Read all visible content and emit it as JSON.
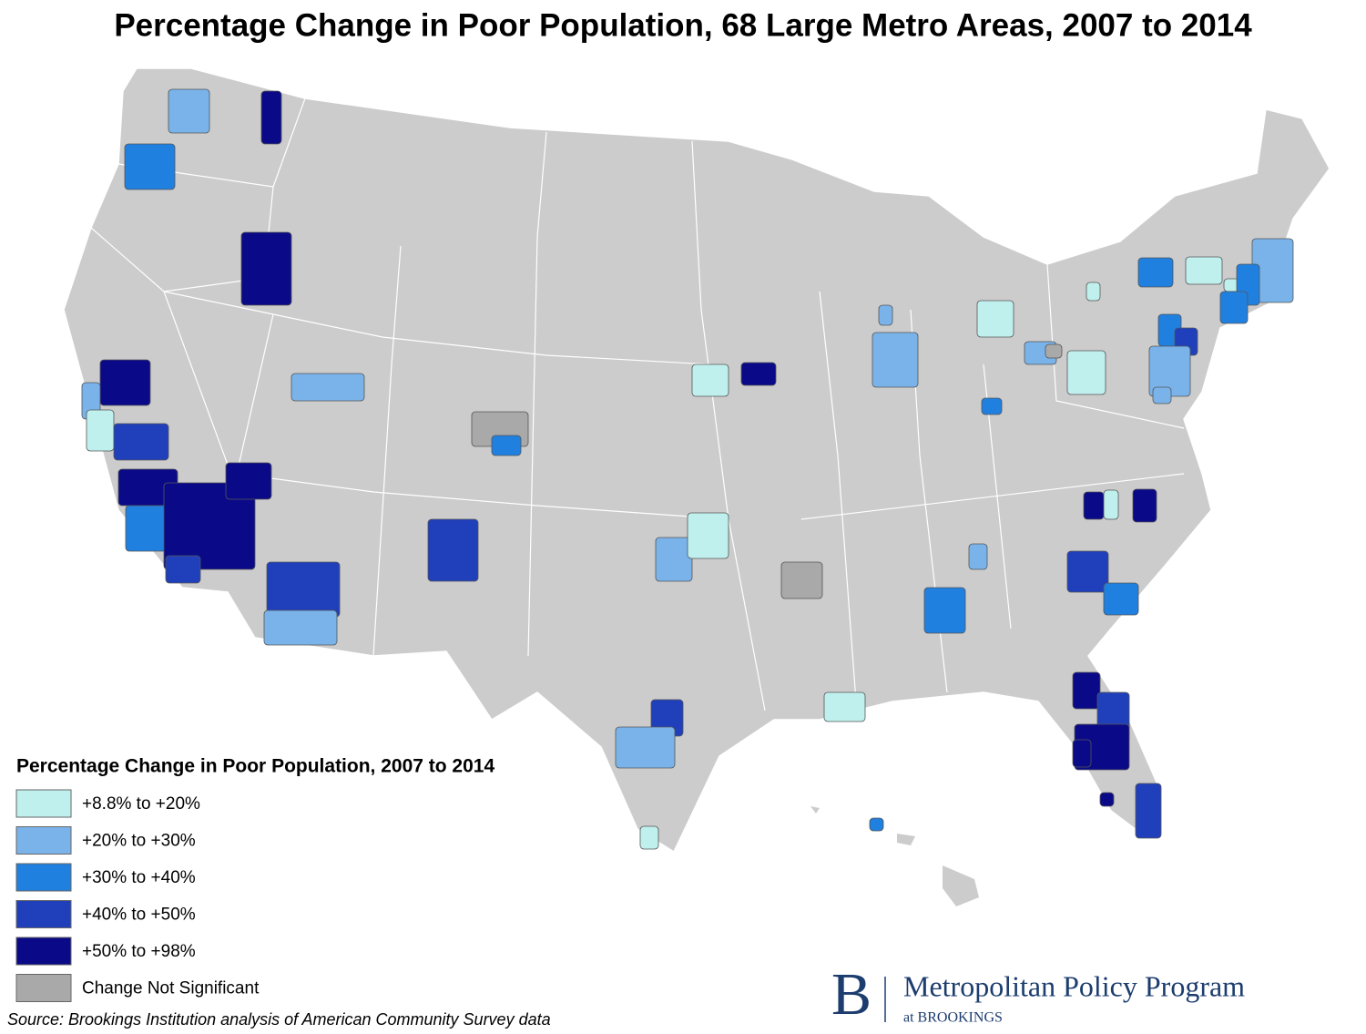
{
  "title": "Percentage Change in Poor Population, 68 Large Metro Areas, 2007 to 2014",
  "legend": {
    "title": "Percentage Change in Poor Population, 2007 to 2014",
    "items": [
      {
        "label": "+8.8% to +20%",
        "color": "#bff0ee"
      },
      {
        "label": "+20% to +30%",
        "color": "#79b3ea"
      },
      {
        "label": "+30% to +40%",
        "color": "#1f80e0"
      },
      {
        "label": "+40% to +50%",
        "color": "#2040bb"
      },
      {
        "label": "+50% to +98%",
        "color": "#0a0a88"
      },
      {
        "label": "Change Not Significant",
        "color": "#a9a9a9"
      }
    ]
  },
  "source": "Source: Brookings Institution analysis of American Community Survey data",
  "logo": {
    "mark": "B",
    "name": "Metropolitan Policy Program",
    "sub": "at BROOKINGS"
  }
}
